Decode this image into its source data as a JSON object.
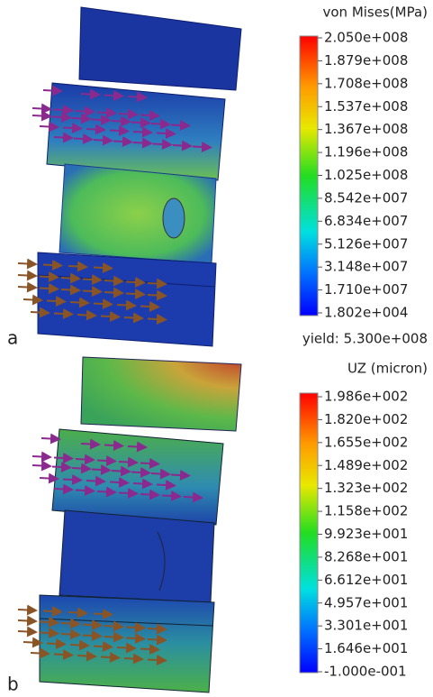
{
  "panels": [
    {
      "label": "a",
      "legend": {
        "title": "von Mises(MPa)",
        "ticks": [
          "2.050e+008",
          "1.879e+008",
          "1.708e+008",
          "1.537e+008",
          "1.367e+008",
          "1.196e+008",
          "1.025e+008",
          "8.542e+007",
          "6.834e+007",
          "5.126e+007",
          "3.148e+007",
          "1.710e+007",
          "1.802e+004"
        ],
        "note": "yield: 5.300e+008"
      }
    },
    {
      "label": "b",
      "legend": {
        "title": "UZ (micron)",
        "ticks": [
          "1.986e+002",
          "1.820e+002",
          "1.655e+002",
          "1.489e+002",
          "1.323e+002",
          "1.158e+002",
          "9.923e+001",
          "8.268e+001",
          "6.612e+001",
          "4.957e+001",
          "3.301e+001",
          "1.646e+001",
          "-1.000e-001"
        ]
      }
    }
  ]
}
